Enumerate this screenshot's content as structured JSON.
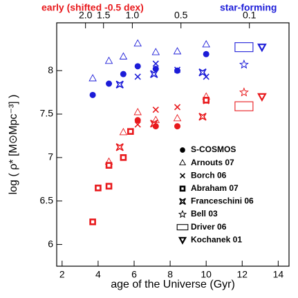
{
  "chart_data": {
    "type": "scatter",
    "xlabel": "age of the Universe (Gyr)",
    "ylabel": "log ( ρ* [M⊙Mpc⁻³] )",
    "xlim": [
      1.7,
      14.6
    ],
    "ylim": [
      5.75,
      8.55
    ],
    "xticks": [
      2,
      4,
      6,
      8,
      10,
      12,
      14
    ],
    "yticks": [
      6,
      6.5,
      7,
      7.5,
      8
    ],
    "top_xticks": [
      {
        "value": 3.3,
        "label": "2.0"
      },
      {
        "value": 4.3,
        "label": "1.5"
      },
      {
        "value": 5.9,
        "label": "1.0"
      },
      {
        "value": 8.6,
        "label": "0.5"
      },
      {
        "value": 12.4,
        "label": "0.1"
      }
    ],
    "annotations": [
      {
        "text": "early (shifted -0.5 dex)",
        "color": "#e8191c"
      },
      {
        "text": "star-forming",
        "color": "#1c1cd8"
      }
    ],
    "legend_color": "#000000",
    "series": [
      {
        "name": "S-COSMOS",
        "marker": "circle",
        "x": [
          3.7,
          4.6,
          5.4,
          6.2,
          7.2,
          8.4,
          10.0
        ],
        "values": [
          7.72,
          7.85,
          7.96,
          8.05,
          8.02,
          8.0,
          8.19
        ],
        "early_x": [
          6.2,
          7.2,
          8.4
        ],
        "early_values": [
          7.43,
          7.36,
          7.36
        ]
      },
      {
        "name": "Arnouts 07",
        "marker": "triangle",
        "x": [
          3.7,
          4.6,
          5.4,
          6.2,
          7.2,
          8.4,
          10.0
        ],
        "values": [
          7.91,
          8.11,
          8.16,
          8.31,
          8.21,
          8.22,
          8.3
        ],
        "early_x": [
          4.6,
          5.4,
          6.2,
          7.2,
          8.4,
          10.0
        ],
        "early_values": [
          6.95,
          7.29,
          7.52,
          7.43,
          7.45,
          7.7
        ]
      },
      {
        "name": "Borch 06",
        "marker": "cross",
        "x": [
          6.2,
          7.2,
          8.4,
          10.0
        ],
        "values": [
          7.93,
          8.08,
          8.01,
          7.93
        ],
        "early_x": [
          6.2,
          7.2,
          8.4,
          10.0
        ],
        "early_values": [
          7.38,
          7.55,
          7.58,
          7.65
        ]
      },
      {
        "name": "Abraham 07",
        "marker": "square",
        "x": [],
        "values": [],
        "early_x": [
          3.7,
          4.0,
          4.6,
          4.6,
          5.4,
          5.8,
          10.0
        ],
        "early_values": [
          6.26,
          6.65,
          6.67,
          6.91,
          7.0,
          7.3,
          7.66
        ]
      },
      {
        "name": "Franceschini 06",
        "marker": "star4",
        "x": [
          5.2,
          7.1,
          9.8
        ],
        "values": [
          7.84,
          7.96,
          7.98
        ],
        "early_x": [
          5.2,
          7.1,
          9.8
        ],
        "early_values": [
          7.12,
          7.39,
          7.47
        ]
      },
      {
        "name": "Bell 03",
        "marker": "star5",
        "x": [
          12.1
        ],
        "values": [
          8.07
        ],
        "early_x": [
          12.1
        ],
        "early_values": [
          7.75
        ]
      },
      {
        "name": "Driver 06",
        "marker": "rect",
        "x": [
          12.1
        ],
        "values": [
          8.27
        ],
        "early_x": [
          12.1
        ],
        "early_values": [
          7.59
        ]
      },
      {
        "name": "Kochanek 01",
        "marker": "downtriangle",
        "x": [
          13.1
        ],
        "values": [
          8.27
        ],
        "early_x": [
          13.1
        ],
        "early_values": [
          7.7
        ]
      }
    ]
  }
}
